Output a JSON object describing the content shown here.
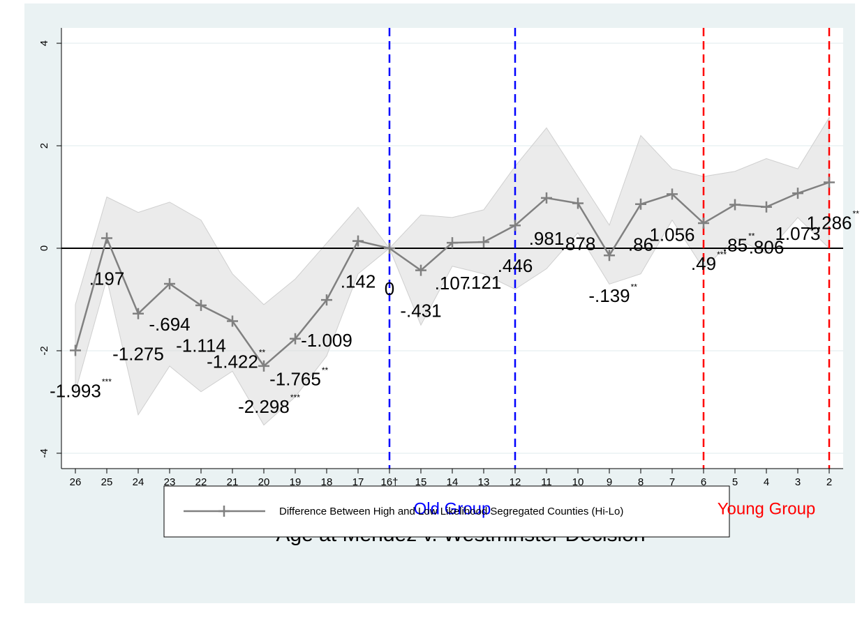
{
  "chart_data": {
    "type": "line",
    "xlabel": "Age at Mendez v. Westminster Decision",
    "categories": [
      "26",
      "25",
      "24",
      "23",
      "22",
      "21",
      "20",
      "19",
      "18",
      "17",
      "16†",
      "15",
      "14",
      "13",
      "12",
      "11",
      "10",
      "9",
      "8",
      "7",
      "6",
      "5",
      "4",
      "3",
      "2"
    ],
    "series": [
      {
        "name": "Difference Between High and Low Likelihood Segregated Counties (Hi-Lo)",
        "color": "#808080",
        "values": [
          -1.993,
          0.197,
          -1.275,
          -0.694,
          -1.114,
          -1.422,
          -2.298,
          -1.765,
          -1.009,
          0.142,
          0,
          -0.431,
          0.107,
          0.121,
          0.446,
          0.981,
          0.878,
          -0.139,
          0.86,
          1.056,
          0.49,
          0.85,
          0.806,
          1.073,
          1.286
        ],
        "value_labels": [
          "-1.993",
          ".197",
          "-1.275",
          "-.694",
          "-1.114",
          "-1.422",
          "-2.298",
          "-1.765",
          "-1.009",
          ".142",
          "0",
          "-.431",
          ".107",
          ".121",
          ".446",
          ".981",
          ".878",
          "-.139",
          ".86",
          "1.056",
          ".49",
          ".85",
          ".806",
          "1.073",
          "1.286"
        ],
        "stars": [
          "***",
          null,
          null,
          null,
          null,
          "**",
          "***",
          "**",
          null,
          null,
          null,
          null,
          null,
          null,
          null,
          null,
          null,
          "**",
          null,
          null,
          "***",
          "**",
          null,
          null,
          "**"
        ],
        "ci_upper": [
          -1.1,
          1.0,
          0.7,
          0.9,
          0.55,
          -0.5,
          -1.1,
          -0.6,
          0.1,
          0.8,
          0,
          0.65,
          0.6,
          0.75,
          1.6,
          2.35,
          1.4,
          0.45,
          2.2,
          1.55,
          1.4,
          1.5,
          1.75,
          1.55,
          2.55
        ],
        "ci_lower": [
          -2.8,
          -0.6,
          -3.25,
          -2.3,
          -2.8,
          -2.4,
          -3.45,
          -2.9,
          -2.1,
          -0.5,
          0,
          -1.5,
          -0.35,
          -0.5,
          -0.8,
          -0.4,
          0.3,
          -0.7,
          -0.5,
          0.55,
          -0.4,
          0.2,
          -0.1,
          0.6,
          0
        ]
      }
    ],
    "ylim": [
      -4.3,
      4.3
    ],
    "yticks": [
      -4,
      -2,
      0,
      2,
      4
    ],
    "hline": 0,
    "grid": true,
    "groups": [
      {
        "label": "Old Group",
        "from": "16†",
        "to": "12",
        "color": "#0000ff"
      },
      {
        "label": "Young Group",
        "from": "6",
        "to": "2",
        "color": "#ff0000"
      }
    ]
  }
}
